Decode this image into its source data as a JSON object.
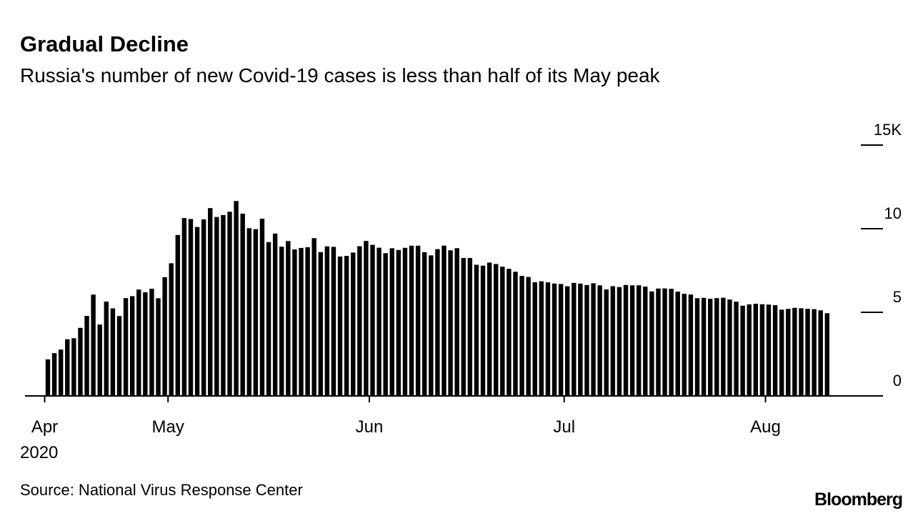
{
  "chart_data": {
    "type": "bar",
    "title": "Gradual Decline",
    "subtitle": "Russia's number of new Covid-19 cases is less than half of its May peak",
    "source": "Source: National Virus Response Center",
    "brand": "Bloomberg",
    "year_label": "2020",
    "color": "#000000",
    "categories": [
      null,
      null,
      null,
      null,
      null,
      null,
      null,
      null,
      null,
      null,
      null,
      null,
      null,
      null,
      null,
      null,
      null,
      null,
      null,
      null,
      null,
      null,
      null,
      null,
      null,
      null,
      null,
      null,
      null,
      null,
      null,
      null,
      null,
      null,
      null,
      null,
      null,
      null,
      null,
      null,
      null,
      null,
      null,
      null,
      null,
      null,
      null,
      null,
      null,
      null,
      null,
      null,
      null,
      null,
      null,
      null,
      null,
      null,
      null,
      null,
      null,
      null,
      null,
      null,
      null,
      null,
      null,
      null,
      null,
      null,
      null,
      null,
      null,
      null,
      null,
      null,
      null,
      null,
      null,
      null,
      null,
      null,
      null,
      null,
      null,
      null,
      null,
      null,
      null,
      null,
      null,
      null,
      null,
      null,
      null,
      null,
      null,
      null,
      null,
      null,
      null,
      null,
      null,
      null,
      null,
      null,
      null,
      null,
      null,
      null,
      null,
      null,
      null,
      null,
      null,
      null,
      null,
      null,
      null,
      null,
      null
    ],
    "values": [
      2.186,
      2.558,
      2.774,
      3.388,
      3.448,
      4.07,
      4.785,
      6.06,
      4.268,
      5.642,
      5.236,
      4.774,
      5.849,
      5.966,
      6.361,
      6.198,
      6.411,
      5.841,
      7.099,
      7.933,
      9.623,
      10.633,
      10.581,
      10.102,
      10.559,
      11.231,
      10.699,
      10.817,
      11.012,
      11.656,
      10.899,
      10.028,
      9.974,
      10.598,
      9.2,
      9.709,
      8.926,
      9.263,
      8.764,
      8.849,
      8.894,
      9.434,
      8.599,
      8.946,
      8.915,
      8.338,
      8.371,
      8.572,
      8.952,
      9.268,
      9.035,
      8.863,
      8.536,
      8.831,
      8.726,
      8.855,
      8.984,
      8.985,
      8.595,
      8.404,
      8.779,
      8.987,
      8.706,
      8.835,
      8.246,
      8.248,
      7.843,
      7.79,
      7.972,
      7.889,
      7.728,
      7.6,
      7.425,
      7.176,
      7.113,
      6.8,
      6.852,
      6.791,
      6.719,
      6.693,
      6.556,
      6.76,
      6.718,
      6.632,
      6.736,
      6.611,
      6.368,
      6.562,
      6.509,
      6.635,
      6.611,
      6.615,
      6.537,
      6.248,
      6.422,
      6.428,
      6.406,
      6.234,
      6.109,
      6.065,
      5.842,
      5.862,
      5.811,
      5.848,
      5.871,
      5.765,
      5.635,
      5.395,
      5.475,
      5.509,
      5.482,
      5.462,
      5.427,
      5.159,
      5.204,
      5.267,
      5.241,
      5.212,
      5.189,
      5.118,
      4.945
    ],
    "xticks": [
      {
        "value": 0,
        "label": "Apr"
      },
      {
        "value": 19,
        "label": "May"
      },
      {
        "value": 50,
        "label": "Jun"
      },
      {
        "value": 80,
        "label": "Jul"
      },
      {
        "value": 111,
        "label": "Aug"
      }
    ],
    "ylim": [
      0,
      15
    ],
    "yticks": [
      0,
      5,
      10,
      {
        "value": 15,
        "label": "15K"
      }
    ]
  }
}
